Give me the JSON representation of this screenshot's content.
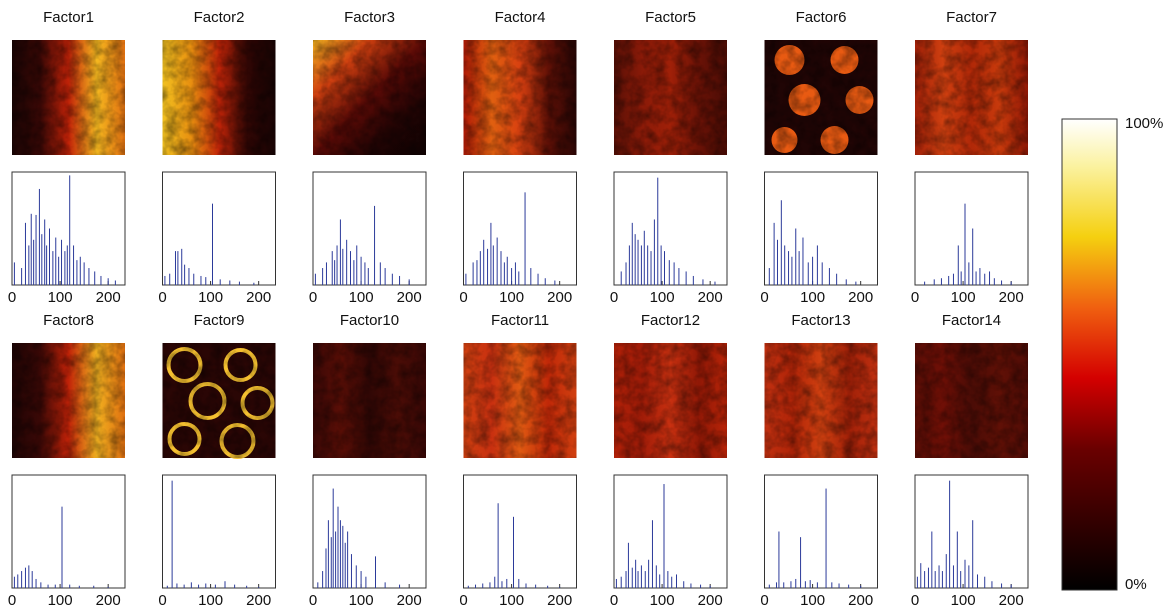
{
  "chart_data": [
    {
      "type": "bar",
      "title": "Factor1",
      "color": "#2b3a9a",
      "xlim": [
        0,
        235
      ],
      "xticks": [
        0,
        100,
        200
      ],
      "ylim": [
        0,
        1
      ],
      "x": [
        5,
        20,
        28,
        35,
        40,
        45,
        50,
        57,
        62,
        68,
        72,
        78,
        85,
        91,
        97,
        103,
        110,
        115,
        120,
        128,
        135,
        142,
        150,
        160,
        172,
        185,
        200,
        215
      ],
      "values": [
        0.2,
        0.15,
        0.55,
        0.35,
        0.63,
        0.4,
        0.62,
        0.85,
        0.45,
        0.58,
        0.35,
        0.5,
        0.3,
        0.42,
        0.25,
        0.4,
        0.3,
        0.35,
        0.97,
        0.35,
        0.22,
        0.25,
        0.2,
        0.15,
        0.12,
        0.08,
        0.06,
        0.04
      ]
    },
    {
      "type": "bar",
      "title": "Factor2",
      "color": "#2b3a9a",
      "xlim": [
        0,
        235
      ],
      "xticks": [
        0,
        100,
        200
      ],
      "ylim": [
        0,
        1
      ],
      "x": [
        5,
        15,
        27,
        32,
        40,
        46,
        55,
        65,
        80,
        90,
        104,
        120,
        140,
        160,
        190
      ],
      "values": [
        0.08,
        0.1,
        0.3,
        0.3,
        0.32,
        0.18,
        0.15,
        0.1,
        0.08,
        0.07,
        0.72,
        0.05,
        0.04,
        0.03,
        0.02
      ]
    },
    {
      "type": "bar",
      "title": "Factor3",
      "color": "#2b3a9a",
      "xlim": [
        0,
        235
      ],
      "xticks": [
        0,
        100,
        200
      ],
      "ylim": [
        0,
        1
      ],
      "x": [
        5,
        20,
        28,
        40,
        45,
        50,
        57,
        62,
        70,
        78,
        85,
        91,
        100,
        108,
        115,
        128,
        140,
        150,
        165,
        180,
        200
      ],
      "values": [
        0.1,
        0.15,
        0.2,
        0.3,
        0.22,
        0.35,
        0.58,
        0.32,
        0.4,
        0.3,
        0.22,
        0.35,
        0.25,
        0.2,
        0.15,
        0.7,
        0.2,
        0.15,
        0.1,
        0.08,
        0.05
      ]
    },
    {
      "type": "bar",
      "title": "Factor4",
      "color": "#2b3a9a",
      "xlim": [
        0,
        235
      ],
      "xticks": [
        0,
        100,
        200
      ],
      "ylim": [
        0,
        1
      ],
      "x": [
        5,
        20,
        28,
        35,
        42,
        50,
        57,
        62,
        70,
        78,
        85,
        91,
        100,
        108,
        115,
        128,
        140,
        155,
        170,
        190
      ],
      "values": [
        0.1,
        0.2,
        0.22,
        0.3,
        0.4,
        0.32,
        0.55,
        0.35,
        0.42,
        0.3,
        0.2,
        0.25,
        0.15,
        0.2,
        0.12,
        0.82,
        0.15,
        0.1,
        0.06,
        0.04
      ]
    },
    {
      "type": "bar",
      "title": "Factor5",
      "color": "#2b3a9a",
      "xlim": [
        0,
        235
      ],
      "xticks": [
        0,
        100,
        200
      ],
      "ylim": [
        0,
        1
      ],
      "x": [
        15,
        25,
        32,
        38,
        44,
        50,
        57,
        63,
        70,
        77,
        84,
        91,
        98,
        105,
        115,
        125,
        135,
        150,
        165,
        185,
        210
      ],
      "values": [
        0.12,
        0.2,
        0.35,
        0.55,
        0.45,
        0.4,
        0.35,
        0.48,
        0.35,
        0.3,
        0.58,
        0.95,
        0.35,
        0.3,
        0.22,
        0.2,
        0.15,
        0.12,
        0.08,
        0.05,
        0.03
      ]
    },
    {
      "type": "bar",
      "title": "Factor6",
      "color": "#2b3a9a",
      "xlim": [
        0,
        235
      ],
      "xticks": [
        0,
        100,
        200
      ],
      "ylim": [
        0,
        1
      ],
      "x": [
        10,
        20,
        27,
        35,
        42,
        50,
        57,
        65,
        72,
        80,
        91,
        100,
        110,
        120,
        135,
        150,
        170,
        190
      ],
      "values": [
        0.15,
        0.55,
        0.4,
        0.75,
        0.35,
        0.3,
        0.25,
        0.5,
        0.3,
        0.42,
        0.2,
        0.25,
        0.35,
        0.2,
        0.15,
        0.1,
        0.05,
        0.03
      ]
    },
    {
      "type": "bar",
      "title": "Factor7",
      "color": "#2b3a9a",
      "xlim": [
        0,
        235
      ],
      "xticks": [
        0,
        100,
        200
      ],
      "ylim": [
        0,
        1
      ],
      "x": [
        20,
        40,
        55,
        70,
        80,
        90,
        96,
        104,
        112,
        120,
        127,
        135,
        145,
        155,
        165,
        180,
        200
      ],
      "values": [
        0.03,
        0.05,
        0.06,
        0.08,
        0.1,
        0.35,
        0.12,
        0.72,
        0.2,
        0.5,
        0.12,
        0.15,
        0.1,
        0.12,
        0.06,
        0.04,
        0.03
      ]
    },
    {
      "type": "bar",
      "title": "Factor8",
      "color": "#2b3a9a",
      "xlim": [
        0,
        235
      ],
      "xticks": [
        0,
        100,
        200
      ],
      "ylim": [
        0,
        1
      ],
      "x": [
        5,
        12,
        20,
        28,
        35,
        42,
        50,
        60,
        75,
        90,
        104,
        120,
        140,
        170,
        200
      ],
      "values": [
        0.1,
        0.12,
        0.15,
        0.18,
        0.2,
        0.15,
        0.08,
        0.05,
        0.03,
        0.03,
        0.72,
        0.03,
        0.02,
        0.02,
        0.01
      ]
    },
    {
      "type": "bar",
      "title": "Factor9",
      "color": "#2b3a9a",
      "xlim": [
        0,
        235
      ],
      "xticks": [
        0,
        100,
        200
      ],
      "ylim": [
        0,
        1
      ],
      "x": [
        10,
        20,
        30,
        45,
        60,
        75,
        90,
        110,
        130,
        150,
        175,
        200
      ],
      "values": [
        0.02,
        0.95,
        0.04,
        0.03,
        0.05,
        0.03,
        0.04,
        0.03,
        0.06,
        0.03,
        0.02,
        0.01
      ]
    },
    {
      "type": "bar",
      "title": "Factor10",
      "color": "#2b3a9a",
      "xlim": [
        0,
        235
      ],
      "xticks": [
        0,
        100,
        200
      ],
      "ylim": [
        0,
        1
      ],
      "x": [
        10,
        20,
        27,
        32,
        38,
        42,
        47,
        52,
        57,
        62,
        67,
        72,
        80,
        90,
        100,
        110,
        130,
        150,
        180
      ],
      "values": [
        0.05,
        0.15,
        0.35,
        0.6,
        0.45,
        0.88,
        0.5,
        0.72,
        0.6,
        0.55,
        0.4,
        0.5,
        0.3,
        0.2,
        0.15,
        0.1,
        0.28,
        0.05,
        0.03
      ]
    },
    {
      "type": "bar",
      "title": "Factor11",
      "color": "#2b3a9a",
      "xlim": [
        0,
        235
      ],
      "xticks": [
        0,
        100,
        200
      ],
      "ylim": [
        0,
        1
      ],
      "x": [
        10,
        25,
        40,
        55,
        65,
        72,
        80,
        90,
        104,
        115,
        130,
        150,
        175,
        200
      ],
      "values": [
        0.02,
        0.03,
        0.04,
        0.05,
        0.1,
        0.75,
        0.06,
        0.08,
        0.63,
        0.08,
        0.04,
        0.03,
        0.02,
        0.01
      ]
    },
    {
      "type": "bar",
      "title": "Factor12",
      "color": "#2b3a9a",
      "xlim": [
        0,
        235
      ],
      "xticks": [
        0,
        100,
        200
      ],
      "ylim": [
        0,
        1
      ],
      "x": [
        5,
        15,
        25,
        30,
        38,
        45,
        50,
        57,
        65,
        72,
        80,
        88,
        95,
        104,
        112,
        120,
        130,
        145,
        160,
        180,
        200
      ],
      "values": [
        0.08,
        0.1,
        0.15,
        0.4,
        0.18,
        0.25,
        0.15,
        0.2,
        0.15,
        0.25,
        0.6,
        0.2,
        0.12,
        0.92,
        0.15,
        0.1,
        0.12,
        0.06,
        0.04,
        0.03,
        0.02
      ]
    },
    {
      "type": "bar",
      "title": "Factor13",
      "color": "#2b3a9a",
      "xlim": [
        0,
        235
      ],
      "xticks": [
        0,
        100,
        200
      ],
      "ylim": [
        0,
        1
      ],
      "x": [
        10,
        25,
        30,
        40,
        55,
        65,
        75,
        85,
        95,
        110,
        128,
        140,
        155,
        175,
        200
      ],
      "values": [
        0.03,
        0.05,
        0.5,
        0.05,
        0.06,
        0.08,
        0.45,
        0.06,
        0.07,
        0.05,
        0.88,
        0.05,
        0.04,
        0.03,
        0.02
      ]
    },
    {
      "type": "bar",
      "title": "Factor14",
      "color": "#2b3a9a",
      "xlim": [
        0,
        235
      ],
      "xticks": [
        0,
        100,
        200
      ],
      "ylim": [
        0,
        1
      ],
      "x": [
        5,
        12,
        20,
        28,
        35,
        42,
        50,
        57,
        65,
        72,
        80,
        88,
        95,
        104,
        112,
        120,
        130,
        145,
        160,
        180,
        200
      ],
      "values": [
        0.1,
        0.22,
        0.15,
        0.18,
        0.5,
        0.15,
        0.2,
        0.15,
        0.3,
        0.95,
        0.2,
        0.5,
        0.15,
        0.25,
        0.2,
        0.6,
        0.12,
        0.1,
        0.06,
        0.04,
        0.03
      ]
    },
    {
      "type": "colorbar",
      "ylim": [
        0,
        100
      ],
      "yticks": [
        {
          "value": 0,
          "label": "0%"
        },
        {
          "value": 100,
          "label": "100%"
        }
      ]
    }
  ]
}
